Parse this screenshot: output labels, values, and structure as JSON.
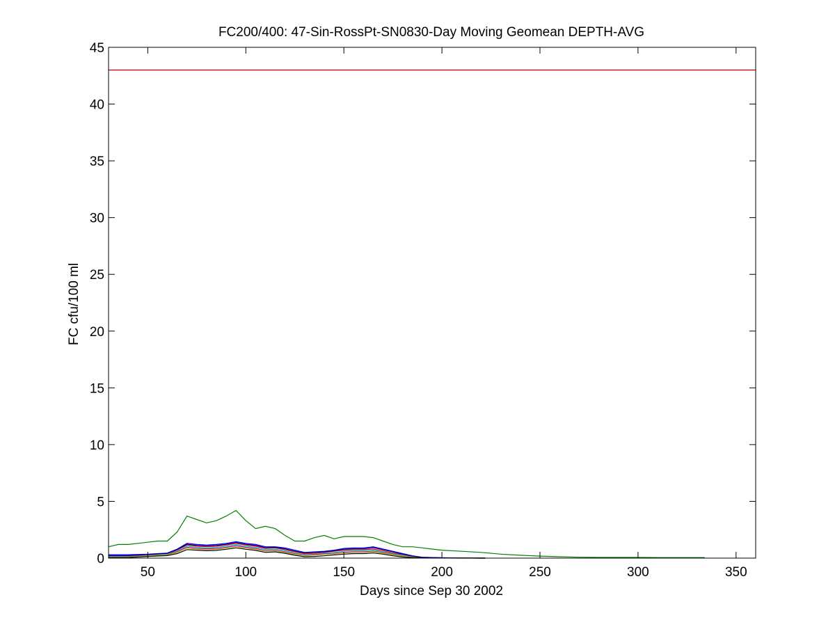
{
  "chart_data": {
    "type": "line",
    "title": "FC200/400: 47-Sin-RossPt-SN0830-Day Moving Geomean DEPTH-AVG",
    "xlabel": "Days since Sep 30 2002",
    "ylabel": "FC cfu/100 ml",
    "xlim": [
      30,
      360
    ],
    "ylim": [
      0,
      45
    ],
    "xticks": [
      50,
      100,
      150,
      200,
      250,
      300,
      350
    ],
    "yticks": [
      0,
      5,
      10,
      15,
      20,
      25,
      30,
      35,
      40,
      45
    ],
    "grid": false,
    "legend": "none",
    "reference_line": {
      "y": 43,
      "color": "#cc0000"
    },
    "series": [
      {
        "color": "#007f00",
        "x": [
          30,
          35,
          40,
          45,
          50,
          55,
          60,
          65,
          70,
          75,
          80,
          85,
          90,
          95,
          100,
          105,
          110,
          115,
          120,
          125,
          130,
          135,
          140,
          145,
          150,
          155,
          160,
          165,
          170,
          175,
          180,
          185,
          190,
          195,
          200,
          210,
          220,
          230,
          240,
          250,
          260,
          270,
          280,
          290,
          300,
          310,
          320,
          334
        ],
        "y": [
          1.0,
          1.2,
          1.2,
          1.3,
          1.4,
          1.5,
          1.5,
          2.3,
          3.7,
          3.4,
          3.1,
          3.3,
          3.7,
          4.2,
          3.3,
          2.6,
          2.8,
          2.6,
          2.0,
          1.5,
          1.5,
          1.8,
          2.0,
          1.7,
          1.9,
          1.9,
          1.9,
          1.8,
          1.5,
          1.2,
          1.0,
          1.0,
          0.9,
          0.8,
          0.7,
          0.6,
          0.5,
          0.35,
          0.25,
          0.18,
          0.12,
          0.08,
          0.06,
          0.06,
          0.06,
          0.05,
          0.05,
          0.05
        ]
      },
      {
        "color": "#0000ff",
        "x": [
          30,
          40,
          50,
          60,
          65,
          70,
          75,
          80,
          85,
          90,
          95,
          100,
          105,
          110,
          115,
          120,
          125,
          130,
          135,
          140,
          145,
          150,
          155,
          160,
          165,
          170,
          175,
          180,
          185,
          190,
          200,
          210,
          222
        ],
        "y": [
          0.3,
          0.3,
          0.35,
          0.45,
          0.8,
          1.3,
          1.2,
          1.15,
          1.2,
          1.3,
          1.45,
          1.3,
          1.2,
          1.0,
          1.0,
          0.9,
          0.7,
          0.5,
          0.55,
          0.6,
          0.7,
          0.85,
          0.9,
          0.9,
          1.0,
          0.8,
          0.6,
          0.4,
          0.2,
          0.08,
          0.03,
          0.01,
          0.0
        ]
      },
      {
        "color": "#ff0000",
        "x": [
          30,
          40,
          50,
          60,
          65,
          70,
          75,
          80,
          85,
          90,
          95,
          100,
          105,
          110,
          115,
          120,
          125,
          130,
          135,
          140,
          145,
          150,
          155,
          160,
          165,
          170,
          175,
          180,
          185,
          190,
          200,
          210,
          222
        ],
        "y": [
          0.2,
          0.2,
          0.3,
          0.4,
          0.7,
          1.15,
          1.05,
          1.0,
          1.05,
          1.15,
          1.3,
          1.15,
          1.05,
          0.85,
          0.9,
          0.75,
          0.55,
          0.38,
          0.42,
          0.5,
          0.6,
          0.7,
          0.75,
          0.75,
          0.8,
          0.65,
          0.45,
          0.3,
          0.15,
          0.06,
          0.02,
          0.01,
          0.0
        ]
      },
      {
        "color": "#00bfbf",
        "x": [
          30,
          40,
          50,
          60,
          65,
          70,
          75,
          80,
          85,
          90,
          95,
          100,
          105,
          110,
          115,
          120,
          125,
          130,
          135,
          140,
          145,
          150,
          155,
          160,
          165,
          170,
          175,
          180,
          185,
          190,
          200,
          210,
          222
        ],
        "y": [
          0.15,
          0.15,
          0.25,
          0.35,
          0.6,
          1.05,
          0.95,
          0.9,
          0.95,
          1.05,
          1.2,
          1.05,
          0.95,
          0.75,
          0.8,
          0.65,
          0.45,
          0.3,
          0.35,
          0.42,
          0.5,
          0.6,
          0.65,
          0.65,
          0.7,
          0.55,
          0.38,
          0.25,
          0.12,
          0.05,
          0.02,
          0.01,
          0.0
        ]
      },
      {
        "color": "#bf00bf",
        "x": [
          30,
          40,
          50,
          60,
          65,
          70,
          75,
          80,
          85,
          90,
          95,
          100,
          105,
          110,
          115,
          120,
          125,
          130,
          135,
          140,
          145,
          150,
          155,
          160,
          165,
          170,
          175,
          180,
          185,
          190,
          200,
          210,
          222
        ],
        "y": [
          0.12,
          0.12,
          0.22,
          0.3,
          0.55,
          0.95,
          0.85,
          0.82,
          0.85,
          0.95,
          1.1,
          0.95,
          0.85,
          0.65,
          0.7,
          0.55,
          0.38,
          0.25,
          0.3,
          0.36,
          0.42,
          0.5,
          0.55,
          0.55,
          0.6,
          0.48,
          0.32,
          0.2,
          0.1,
          0.04,
          0.02,
          0.01,
          0.0
        ]
      },
      {
        "color": "#bfbf00",
        "x": [
          30,
          40,
          50,
          60,
          65,
          70,
          75,
          80,
          85,
          90,
          95,
          100,
          105,
          110,
          115,
          120,
          125,
          130,
          135,
          140,
          145,
          150,
          155,
          160,
          165,
          170,
          175,
          180,
          185,
          190,
          200,
          210,
          222
        ],
        "y": [
          0.1,
          0.1,
          0.2,
          0.28,
          0.5,
          0.88,
          0.8,
          0.75,
          0.78,
          0.88,
          1.0,
          0.88,
          0.78,
          0.6,
          0.65,
          0.5,
          0.34,
          0.22,
          0.26,
          0.32,
          0.38,
          0.45,
          0.5,
          0.5,
          0.55,
          0.43,
          0.28,
          0.18,
          0.09,
          0.04,
          0.02,
          0.01,
          0.0
        ]
      },
      {
        "color": "#000000",
        "x": [
          30,
          40,
          50,
          60,
          65,
          70,
          75,
          80,
          85,
          90,
          95,
          100,
          105,
          110,
          115,
          120,
          125,
          130,
          135,
          140,
          145,
          150,
          155,
          160,
          165,
          170,
          175,
          180,
          185,
          190,
          200,
          210,
          222
        ],
        "y": [
          0.05,
          0.05,
          0.15,
          0.22,
          0.4,
          0.75,
          0.7,
          0.65,
          0.68,
          0.78,
          0.9,
          0.78,
          0.68,
          0.5,
          0.55,
          0.42,
          0.25,
          0.12,
          0.15,
          0.2,
          0.28,
          0.35,
          0.4,
          0.4,
          0.45,
          0.35,
          0.2,
          0.1,
          0.05,
          0.02,
          0.01,
          0.0,
          0.0
        ]
      },
      {
        "color": "#00007f",
        "x": [
          30,
          40,
          50,
          60,
          65,
          70,
          75,
          80,
          85,
          90,
          95,
          100,
          105,
          110,
          115,
          120,
          125,
          130,
          135,
          140,
          145,
          150,
          155,
          160,
          165,
          170,
          175,
          180,
          185,
          190,
          200,
          210,
          222
        ],
        "y": [
          0.22,
          0.22,
          0.32,
          0.42,
          0.75,
          1.22,
          1.12,
          1.08,
          1.12,
          1.22,
          1.38,
          1.22,
          1.12,
          0.92,
          0.95,
          0.82,
          0.62,
          0.45,
          0.5,
          0.55,
          0.65,
          0.78,
          0.82,
          0.82,
          0.92,
          0.75,
          0.55,
          0.35,
          0.18,
          0.07,
          0.03,
          0.01,
          0.0
        ]
      }
    ]
  }
}
